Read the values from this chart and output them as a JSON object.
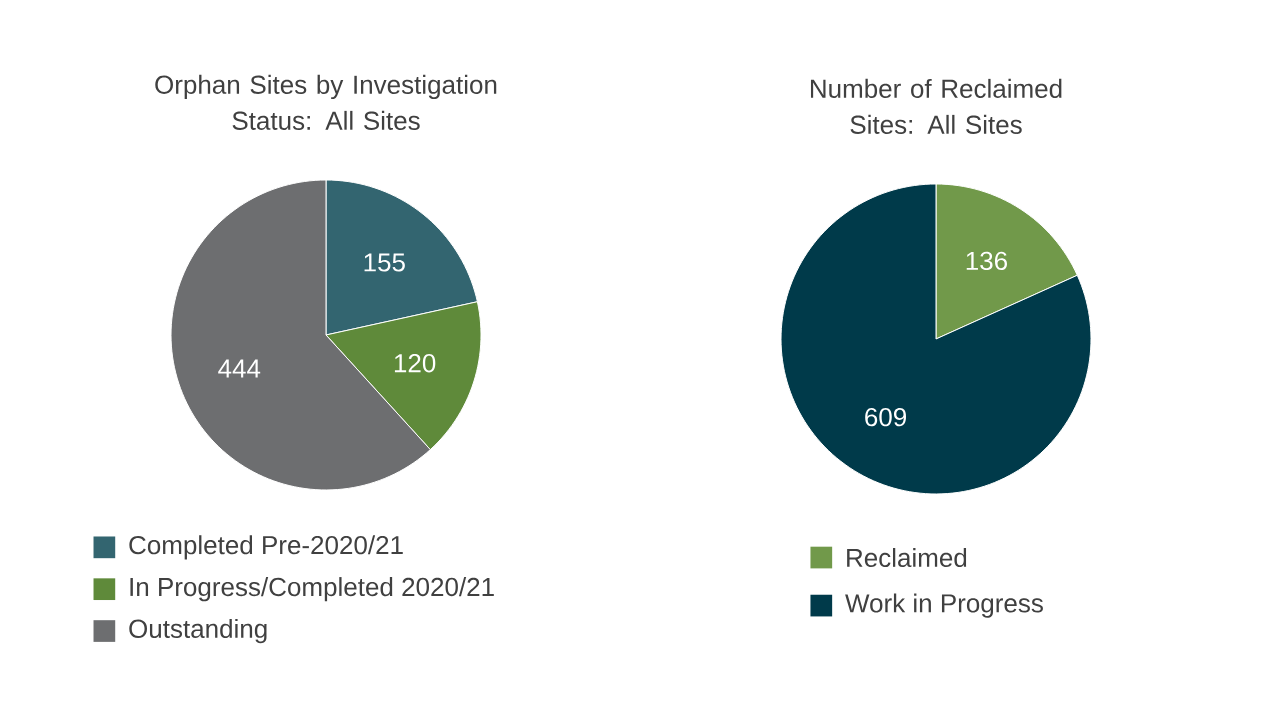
{
  "chart_data": [
    {
      "type": "pie",
      "title": "Orphan Sites by Investigation Status: All Sites",
      "categories": [
        "Completed Pre-2020/21",
        "In Progress/Completed 2020/21",
        "Outstanding"
      ],
      "values": [
        155,
        120,
        444
      ],
      "colors": [
        "#336570",
        "#5f8a3a",
        "#6d6e70"
      ],
      "data_labels": true,
      "legend": "bottom"
    },
    {
      "type": "pie",
      "title": "Number of Reclaimed Sites: All Sites",
      "categories": [
        "Reclaimed",
        "Work in Progress"
      ],
      "values": [
        136,
        609
      ],
      "colors": [
        "#71994a",
        "#003a4a"
      ],
      "data_labels": true,
      "legend": "bottom"
    }
  ]
}
